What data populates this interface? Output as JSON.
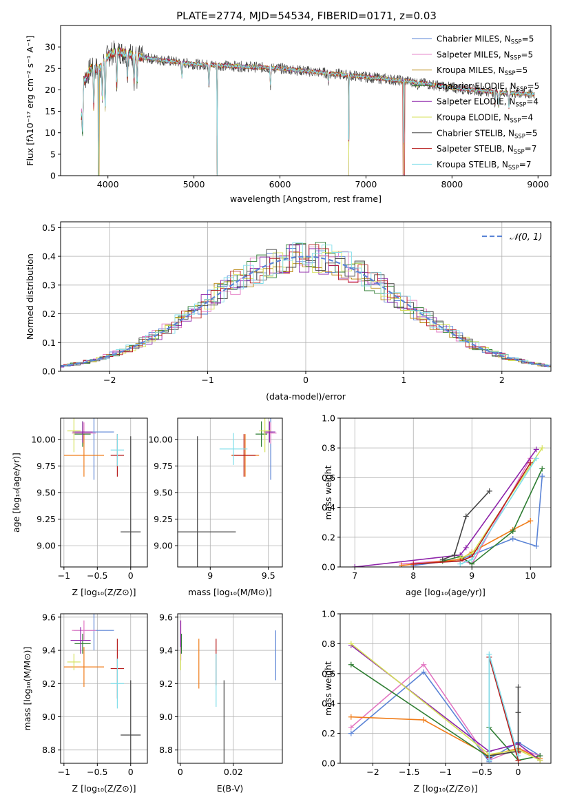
{
  "figure": {
    "title": "PLATE=2774, MJD=54534, FIBERID=0171, z=0.03"
  },
  "models": [
    {
      "name": "Chabrier MILES, N_SSP=5",
      "label_main": "Chabrier MILES, N",
      "nssp": "5",
      "color": "#5b84d6"
    },
    {
      "name": "Salpeter MILES, N_SSP=5",
      "label_main": "Salpeter MILES, N",
      "nssp": "5",
      "color": "#e377c2"
    },
    {
      "name": "Kroupa MILES, N_SSP=5",
      "label_main": "Kroupa MILES, N",
      "nssp": "5",
      "color": "#b8860b"
    },
    {
      "name": "Chabrier ELODIE, N_SSP=5",
      "label_main": "Chabrier ELODIE, N",
      "nssp": "5",
      "color": "#2e7d32"
    },
    {
      "name": "Salpeter ELODIE, N_SSP=4",
      "label_main": "Salpeter ELODIE, N",
      "nssp": "4",
      "color": "#8e24aa"
    },
    {
      "name": "Kroupa ELODIE, N_SSP=4",
      "label_main": "Kroupa ELODIE, N",
      "nssp": "4",
      "color": "#d4e157"
    },
    {
      "name": "Chabrier STELIB, N_SSP=5",
      "label_main": "Chabrier STELIB, N",
      "nssp": "5",
      "color": "#444444"
    },
    {
      "name": "Salpeter STELIB, N_SSP=7",
      "label_main": "Salpeter STELIB, N",
      "nssp": "7",
      "color": "#b71c1c"
    },
    {
      "name": "Kroupa STELIB, N_SSP=7",
      "label_main": "Kroupa STELIB, N",
      "nssp": "7",
      "color": "#80deea"
    }
  ],
  "nssp_sub": "SSP",
  "chart_data": [
    {
      "id": "spectrum",
      "type": "line",
      "xlabel": "wavelength [Angstrom, rest frame]",
      "ylabel": "Flux [f_λ 10^-17 erg cm^-2 s^-1 A^-1]",
      "xlim": [
        3450,
        9150
      ],
      "ylim": [
        0,
        35
      ],
      "xticks": [
        4000,
        5000,
        6000,
        7000,
        8000,
        9000
      ],
      "yticks": [
        0,
        5,
        10,
        15,
        20,
        25,
        30
      ],
      "legend": "top-right",
      "continuum_points": [
        [
          3690,
          14
        ],
        [
          3720,
          22
        ],
        [
          3800,
          25
        ],
        [
          3900,
          25
        ],
        [
          4000,
          28
        ],
        [
          4100,
          29
        ],
        [
          4200,
          28.5
        ],
        [
          4400,
          27.5
        ],
        [
          4600,
          27
        ],
        [
          4800,
          26.5
        ],
        [
          5000,
          26
        ],
        [
          5500,
          25.5
        ],
        [
          6000,
          25
        ],
        [
          6500,
          24
        ],
        [
          7000,
          23
        ],
        [
          7500,
          22
        ],
        [
          8000,
          20.5
        ],
        [
          8500,
          19.5
        ],
        [
          8900,
          19
        ]
      ],
      "absorption_features": [
        [
          3705,
          10
        ],
        [
          3835,
          16
        ],
        [
          3890,
          0
        ],
        [
          3934,
          18
        ],
        [
          3968,
          16
        ],
        [
          4102,
          21
        ],
        [
          4227,
          23
        ],
        [
          4304,
          22
        ],
        [
          4340,
          22
        ],
        [
          4861,
          23
        ],
        [
          5175,
          21
        ],
        [
          5270,
          0
        ],
        [
          5890,
          21
        ],
        [
          6563,
          22
        ],
        [
          6800,
          0
        ],
        [
          7440,
          0
        ],
        [
          7600,
          21
        ],
        [
          8498,
          17
        ],
        [
          8542,
          16
        ],
        [
          8662,
          16
        ]
      ]
    },
    {
      "id": "residuals",
      "type": "line",
      "xlabel": "(data-model)/error",
      "ylabel": "Normed distribution",
      "xlim": [
        -2.5,
        2.5
      ],
      "ylim": [
        0,
        0.52
      ],
      "xticks": [
        -2,
        -1,
        0,
        1,
        2
      ],
      "yticks": [
        0.0,
        0.1,
        0.2,
        0.3,
        0.4,
        0.5
      ],
      "legend_label": "N(0,1)",
      "normal": {
        "mean": 0,
        "sigma": 1
      }
    },
    {
      "id": "age_vs_Z",
      "type": "scatter",
      "xlabel": "Z [log10(Z/Z_sun)]",
      "ylabel": "age [log10(age/yr)]",
      "xlim": [
        -1.05,
        0.25
      ],
      "ylim": [
        8.8,
        10.2
      ],
      "xticks": [
        -1.0,
        -0.5,
        0.0
      ],
      "yticks": [
        9.0,
        9.25,
        9.5,
        9.75,
        10.0
      ],
      "points": [
        {
          "x": -0.55,
          "y": 10.07,
          "xerr": 0.3,
          "yerr": 0.45,
          "color": "#5b84d6"
        },
        {
          "x": -0.7,
          "y": 10.06,
          "xerr": 0.18,
          "yerr": 0.1,
          "color": "#e377c2"
        },
        {
          "x": -0.7,
          "y": 9.85,
          "xerr": 0.3,
          "yerr": 0.2,
          "color": "#f07d1a"
        },
        {
          "x": -0.72,
          "y": 10.05,
          "xerr": 0.12,
          "yerr": 0.12,
          "color": "#2e7d32"
        },
        {
          "x": -0.72,
          "y": 10.07,
          "xerr": 0.15,
          "yerr": 0.1,
          "color": "#8e24aa"
        },
        {
          "x": -0.85,
          "y": 10.08,
          "xerr": 0.1,
          "yerr": 0.2,
          "color": "#d4e157"
        },
        {
          "x": 0.0,
          "y": 9.13,
          "xerr": 0.15,
          "yerr": 0.9,
          "color": "#444444"
        },
        {
          "x": -0.2,
          "y": 9.85,
          "xerr": 0.1,
          "yerr": 0.2,
          "color": "#b71c1c"
        },
        {
          "x": -0.2,
          "y": 9.9,
          "xerr": 0.1,
          "yerr": 0.15,
          "color": "#80deea"
        }
      ]
    },
    {
      "id": "age_vs_mass",
      "type": "scatter",
      "xlabel": "mass [log10(M/M_sun)]",
      "ylabel": "",
      "xlim": [
        8.72,
        9.62
      ],
      "ylim": [
        8.8,
        10.2
      ],
      "xticks": [
        9.0,
        9.5
      ],
      "yticks": [
        9.0,
        9.25,
        9.5,
        9.75,
        10.0
      ],
      "points": [
        {
          "x": 9.52,
          "y": 10.07,
          "xerr": 0.02,
          "yerr": 0.45,
          "color": "#5b84d6"
        },
        {
          "x": 9.52,
          "y": 10.06,
          "xerr": 0.05,
          "yerr": 0.1,
          "color": "#e377c2"
        },
        {
          "x": 9.3,
          "y": 9.85,
          "xerr": 0.12,
          "yerr": 0.2,
          "color": "#f07d1a"
        },
        {
          "x": 9.44,
          "y": 10.05,
          "xerr": 0.05,
          "yerr": 0.12,
          "color": "#2e7d32"
        },
        {
          "x": 9.51,
          "y": 10.07,
          "xerr": 0.05,
          "yerr": 0.1,
          "color": "#8e24aa"
        },
        {
          "x": 9.47,
          "y": 10.08,
          "xerr": 0.05,
          "yerr": 0.2,
          "color": "#d4e157"
        },
        {
          "x": 8.89,
          "y": 9.13,
          "xerr": 0.33,
          "yerr": 0.9,
          "color": "#444444"
        },
        {
          "x": 9.29,
          "y": 9.85,
          "xerr": 0.1,
          "yerr": 0.2,
          "color": "#b71c1c"
        },
        {
          "x": 9.2,
          "y": 9.91,
          "xerr": 0.12,
          "yerr": 0.15,
          "color": "#80deea"
        }
      ]
    },
    {
      "id": "massweight_vs_age",
      "type": "line",
      "xlabel": "age [log10(age/yr)]",
      "ylabel": "mass weight",
      "xlim": [
        6.75,
        10.35
      ],
      "ylim": [
        0,
        1.0
      ],
      "xticks": [
        7,
        8,
        9,
        10
      ],
      "yticks": [
        0.0,
        0.2,
        0.4,
        0.6,
        0.8,
        1.0
      ],
      "series": [
        {
          "color": "#5b84d6",
          "x": [
            8.0,
            8.8,
            9.7,
            10.1,
            10.2
          ],
          "y": [
            0.01,
            0.05,
            0.19,
            0.14,
            0.61
          ]
        },
        {
          "color": "#e377c2",
          "x": [
            7.8,
            8.8,
            9.0,
            10.0
          ],
          "y": [
            0.02,
            0.05,
            0.02,
            0.73
          ]
        },
        {
          "color": "#f07d1a",
          "x": [
            7.8,
            8.8,
            9.0,
            9.7,
            10.0
          ],
          "y": [
            0.01,
            0.05,
            0.1,
            0.25,
            0.31
          ]
        },
        {
          "color": "#2e7d32",
          "x": [
            8.5,
            8.8,
            9.0,
            9.7,
            10.2
          ],
          "y": [
            0.04,
            0.07,
            0.02,
            0.24,
            0.66
          ]
        },
        {
          "color": "#8e24aa",
          "x": [
            7.0,
            8.8,
            8.9,
            10.1
          ],
          "y": [
            0.0,
            0.08,
            0.13,
            0.79
          ]
        },
        {
          "color": "#d4e157",
          "x": [
            8.8,
            9.0,
            10.2
          ],
          "y": [
            0.06,
            0.09,
            0.8
          ]
        },
        {
          "color": "#444444",
          "x": [
            8.5,
            8.7,
            8.9,
            9.3
          ],
          "y": [
            0.05,
            0.08,
            0.34,
            0.51
          ]
        },
        {
          "color": "#b71c1c",
          "x": [
            8.0,
            8.8,
            9.0,
            10.0
          ],
          "y": [
            0.02,
            0.04,
            0.07,
            0.7
          ]
        },
        {
          "color": "#80deea",
          "x": [
            8.8,
            9.0,
            10.1
          ],
          "y": [
            0.02,
            0.05,
            0.73
          ]
        }
      ]
    },
    {
      "id": "mass_vs_Z",
      "type": "scatter",
      "xlabel": "Z [log10(Z/Z_sun)]",
      "ylabel": "mass [log10(M/M_sun)]",
      "xlim": [
        -1.05,
        0.25
      ],
      "ylim": [
        8.72,
        9.62
      ],
      "xticks": [
        -1.0,
        -0.5,
        0.0
      ],
      "yticks": [
        8.8,
        9.0,
        9.2,
        9.4,
        9.6
      ],
      "points": [
        {
          "x": -0.55,
          "y": 9.52,
          "xerr": 0.3,
          "yerr": 0.12,
          "color": "#5b84d6"
        },
        {
          "x": -0.7,
          "y": 9.52,
          "xerr": 0.18,
          "yerr": 0.06,
          "color": "#e377c2"
        },
        {
          "x": -0.7,
          "y": 9.3,
          "xerr": 0.3,
          "yerr": 0.12,
          "color": "#f07d1a"
        },
        {
          "x": -0.72,
          "y": 9.44,
          "xerr": 0.12,
          "yerr": 0.06,
          "color": "#2e7d32"
        },
        {
          "x": -0.75,
          "y": 9.46,
          "xerr": 0.15,
          "yerr": 0.08,
          "color": "#8e24aa"
        },
        {
          "x": -0.85,
          "y": 9.33,
          "xerr": 0.1,
          "yerr": 0.05,
          "color": "#d4e157"
        },
        {
          "x": 0.0,
          "y": 8.89,
          "xerr": 0.15,
          "yerr": 0.33,
          "color": "#444444"
        },
        {
          "x": -0.2,
          "y": 9.29,
          "xerr": 0.1,
          "yerr": 0.18,
          "color": "#b71c1c"
        },
        {
          "x": -0.2,
          "y": 9.2,
          "xerr": 0.1,
          "yerr": 0.15,
          "color": "#80deea"
        }
      ]
    },
    {
      "id": "mass_vs_EBV",
      "type": "scatter",
      "xlabel": "E(B-V)",
      "ylabel": "",
      "xlim": [
        -0.001,
        0.0385
      ],
      "ylim": [
        8.72,
        9.62
      ],
      "xticks": [
        0.0,
        0.02
      ],
      "yticks": [
        8.8,
        9.0,
        9.2,
        9.4,
        9.6
      ],
      "points": [
        {
          "x": 0.036,
          "y": 9.37,
          "xerr": 0,
          "yerr": 0.15,
          "color": "#5b84d6"
        },
        {
          "x": 0.0002,
          "y": 9.46,
          "xerr": 0,
          "yerr": 0.12,
          "color": "#e377c2"
        },
        {
          "x": 0.007,
          "y": 9.32,
          "xerr": 0,
          "yerr": 0.15,
          "color": "#f07d1a"
        },
        {
          "x": 0.0004,
          "y": 9.44,
          "xerr": 0,
          "yerr": 0.06,
          "color": "#2e7d32"
        },
        {
          "x": 0.0001,
          "y": 9.5,
          "xerr": 0,
          "yerr": 0.08,
          "color": "#8e24aa"
        },
        {
          "x": 0.0001,
          "y": 9.33,
          "xerr": 0,
          "yerr": 0.05,
          "color": "#d4e157"
        },
        {
          "x": 0.0165,
          "y": 8.92,
          "xerr": 0,
          "yerr": 0.3,
          "color": "#444444"
        },
        {
          "x": 0.0135,
          "y": 9.33,
          "xerr": 0,
          "yerr": 0.14,
          "color": "#b71c1c"
        },
        {
          "x": 0.0135,
          "y": 9.22,
          "xerr": 0,
          "yerr": 0.16,
          "color": "#80deea"
        }
      ]
    },
    {
      "id": "massweight_vs_Z",
      "type": "line",
      "xlabel": "Z [log10(Z/Z_sun)]",
      "ylabel": "mass weight",
      "xlim": [
        -2.45,
        0.45
      ],
      "ylim": [
        0,
        1.0
      ],
      "xticks": [
        -2.0,
        -1.5,
        -1.0,
        -0.5,
        0.0
      ],
      "yticks": [
        0.0,
        0.2,
        0.4,
        0.6,
        0.8,
        1.0
      ],
      "series": [
        {
          "color": "#5b84d6",
          "x": [
            -2.3,
            -1.3,
            -0.4,
            -0.4,
            0.0,
            0.3
          ],
          "y": [
            0.2,
            0.61,
            0.01,
            0.03,
            0.14,
            0.05
          ]
        },
        {
          "color": "#e377c2",
          "x": [
            -2.3,
            -1.3,
            -0.4,
            0.0,
            0.3
          ],
          "y": [
            0.24,
            0.66,
            0.02,
            0.1,
            0.05
          ]
        },
        {
          "color": "#f07d1a",
          "x": [
            -2.3,
            -1.3,
            -0.4,
            0.0,
            0.3
          ],
          "y": [
            0.31,
            0.29,
            0.05,
            0.1,
            0.03
          ]
        },
        {
          "color": "#2e7d32",
          "x": [
            -2.3,
            -0.4,
            -0.4,
            0.0,
            0.3
          ],
          "y": [
            0.66,
            0.04,
            0.24,
            0.02,
            0.05
          ]
        },
        {
          "color": "#8e24aa",
          "x": [
            -2.3,
            -0.4,
            0.0,
            0.3
          ],
          "y": [
            0.79,
            0.08,
            0.13,
            0.02
          ]
        },
        {
          "color": "#d4e157",
          "x": [
            -2.3,
            -0.4,
            0.0,
            0.3
          ],
          "y": [
            0.8,
            0.06,
            0.09,
            0.02
          ]
        },
        {
          "color": "#444444",
          "x": [
            -0.4,
            0.0,
            0.0,
            0.0
          ],
          "y": [
            0.05,
            0.08,
            0.34,
            0.51
          ]
        },
        {
          "color": "#b71c1c",
          "x": [
            -0.4,
            -0.4,
            0.0,
            0.0
          ],
          "y": [
            0.04,
            0.71,
            0.02,
            0.07
          ]
        },
        {
          "color": "#80deea",
          "x": [
            -0.4,
            -0.4,
            0.0
          ],
          "y": [
            0.02,
            0.73,
            0.05
          ]
        }
      ]
    }
  ]
}
